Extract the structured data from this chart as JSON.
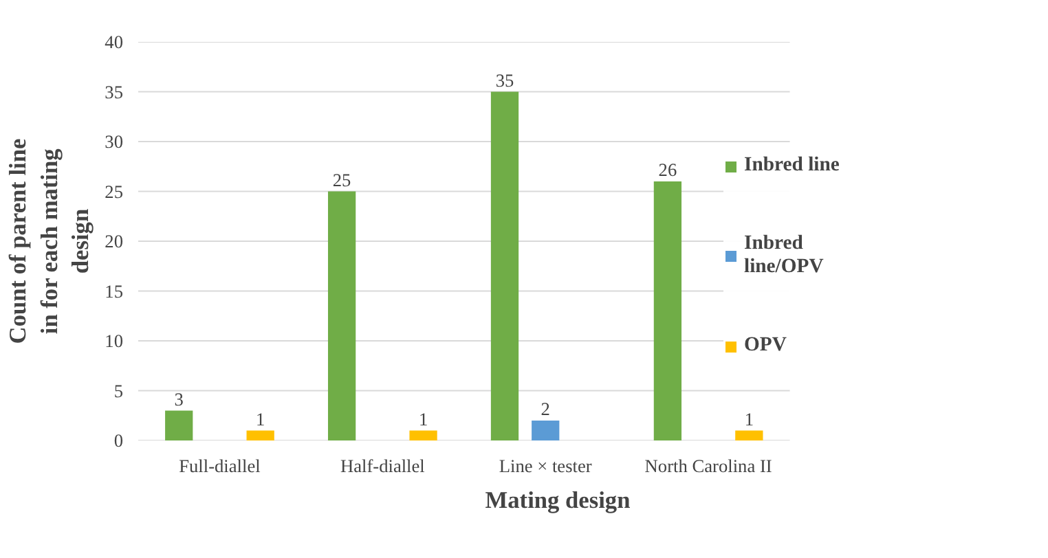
{
  "chart_data": {
    "type": "bar",
    "xlabel": "Mating design",
    "ylabel": "Count of parent line in for each mating design",
    "categories": [
      "Full-diallel",
      "Half-diallel",
      "Line × tester",
      "North Carolina II"
    ],
    "series": [
      {
        "name": "Inbred line",
        "color": "#70ad47",
        "values": [
          3,
          25,
          35,
          26
        ]
      },
      {
        "name": "Inbred line/OPV",
        "color": "#5b9bd5",
        "values": [
          null,
          null,
          2,
          null
        ]
      },
      {
        "name": "OPV",
        "color": "#ffc000",
        "values": [
          1,
          1,
          null,
          1
        ]
      }
    ],
    "ylim": [
      0,
      40
    ],
    "yticks": [
      0,
      5,
      10,
      15,
      20,
      25,
      30,
      35,
      40
    ],
    "grid": "y",
    "legend": "right",
    "data_labels": true
  }
}
